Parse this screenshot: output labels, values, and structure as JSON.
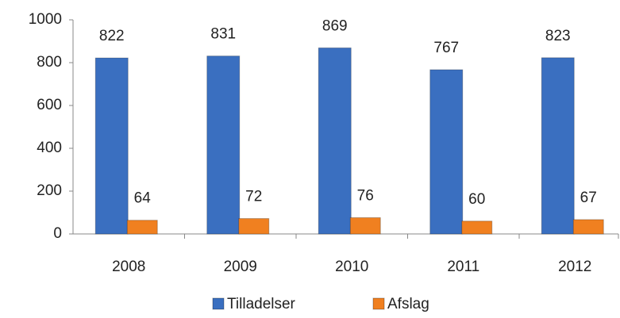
{
  "chart_data": {
    "type": "bar",
    "categories": [
      "2008",
      "2009",
      "2010",
      "2011",
      "2012"
    ],
    "series": [
      {
        "name": "Tilladelser",
        "color": "#3a6fc0",
        "values": [
          822,
          831,
          869,
          767,
          823
        ]
      },
      {
        "name": "Afslag",
        "color": "#f08020",
        "values": [
          64,
          72,
          76,
          60,
          67
        ]
      }
    ],
    "ylim": [
      0,
      1000
    ],
    "yticks": [
      0,
      200,
      400,
      600,
      800,
      1000
    ],
    "grid": false,
    "legend": "bottom"
  }
}
